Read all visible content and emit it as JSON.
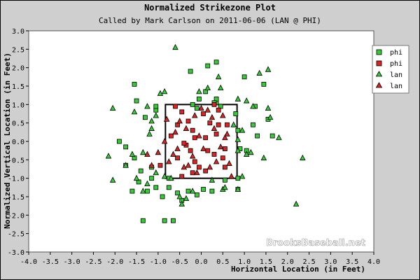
{
  "chart_data": {
    "type": "scatter",
    "title": "Normalized Strikezone Plot",
    "subtitle": "Called by Mark Carlson on 2011-06-06 (LAN @ PHI)",
    "xlabel": "Horizontal Location (in Feet)",
    "ylabel": "Normalized Vertical Location (in Feet)",
    "xlim": [
      -4.0,
      4.0
    ],
    "ylim": [
      -3.0,
      3.0
    ],
    "xticks": [
      "-4.0",
      "-3.5",
      "-3.0",
      "-2.5",
      "-2.0",
      "-1.5",
      "-1.0",
      "-0.5",
      "0.0",
      "0.5",
      "1.0",
      "1.5",
      "2.0",
      "2.5",
      "3.0",
      "3.5",
      "4.0"
    ],
    "yticks": [
      "3.0",
      "2.5",
      "2.0",
      "1.5",
      "1.0",
      "0.5",
      "0.0",
      "-0.5",
      "-1.0",
      "-1.5",
      "-2.0",
      "-2.5",
      "-3.0"
    ],
    "grid": false,
    "legend_position": "top-right",
    "strike_zone": {
      "x": [
        -0.83,
        0.83
      ],
      "y": [
        -1.0,
        1.0
      ]
    },
    "watermark": "BrooksBaseball.net",
    "series": [
      {
        "name": "phi",
        "marker": "square",
        "color": "#33cc33",
        "points": [
          [
            -1.55,
            1.55
          ],
          [
            -1.5,
            1.1
          ],
          [
            -1.05,
            0.85
          ],
          [
            -1.9,
            0.0
          ],
          [
            -1.75,
            -0.15
          ],
          [
            -1.55,
            -0.45
          ],
          [
            -1.75,
            -0.65
          ],
          [
            -1.4,
            -0.8
          ],
          [
            -1.15,
            -0.7
          ],
          [
            -1.15,
            -1.0
          ],
          [
            -1.05,
            -1.25
          ],
          [
            -1.25,
            -1.35
          ],
          [
            -1.45,
            -1.1
          ],
          [
            -1.6,
            -1.35
          ],
          [
            -1.35,
            -2.15
          ],
          [
            -0.9,
            -1.5
          ],
          [
            -0.85,
            -2.15
          ],
          [
            -0.65,
            -2.15
          ],
          [
            -0.75,
            -1.0
          ],
          [
            -0.75,
            -1.25
          ],
          [
            -0.55,
            -1.4
          ],
          [
            -0.45,
            -1.6
          ],
          [
            -0.3,
            -1.35
          ],
          [
            -0.1,
            -1.45
          ],
          [
            0.05,
            -1.3
          ],
          [
            0.25,
            -1.35
          ],
          [
            0.55,
            -1.05
          ],
          [
            0.85,
            -1.3
          ],
          [
            0.85,
            -1.0
          ],
          [
            0.35,
            1.05
          ],
          [
            0.1,
            1.35
          ],
          [
            -0.1,
            0.9
          ],
          [
            -0.2,
            1.0
          ],
          [
            0.35,
            1.15
          ],
          [
            0.45,
            0.95
          ],
          [
            0.3,
            1.05
          ],
          [
            0.35,
            2.15
          ],
          [
            0.15,
            2.05
          ],
          [
            -0.25,
            1.9
          ],
          [
            -0.05,
            1.15
          ],
          [
            0.8,
            0.75
          ],
          [
            0.85,
            0.3
          ],
          [
            0.9,
            -0.2
          ],
          [
            1.05,
            -0.25
          ],
          [
            1.2,
            0.45
          ],
          [
            1.3,
            0.15
          ],
          [
            1.55,
            0.6
          ],
          [
            1.65,
            0.15
          ],
          [
            1.25,
            0.95
          ],
          [
            1.45,
            1.55
          ],
          [
            1.0,
            1.75
          ],
          [
            -1.05,
            0.95
          ],
          [
            -1.3,
            0.65
          ]
        ]
      },
      {
        "name": "phi",
        "marker": "square",
        "color": "#dd2222",
        "points": [
          [
            -0.95,
            -0.65
          ],
          [
            -0.7,
            0.15
          ],
          [
            -0.55,
            0.45
          ],
          [
            -0.55,
            -0.45
          ],
          [
            -0.45,
            0.8
          ],
          [
            -0.35,
            -0.1
          ],
          [
            -0.2,
            0.3
          ],
          [
            -0.15,
            -0.55
          ],
          [
            -0.05,
            -0.7
          ],
          [
            0.1,
            0.1
          ],
          [
            0.2,
            0.5
          ],
          [
            0.3,
            -0.35
          ],
          [
            0.4,
            0.85
          ],
          [
            0.4,
            0.45
          ],
          [
            0.5,
            -0.45
          ],
          [
            0.55,
            -0.7
          ],
          [
            0.6,
            0.45
          ],
          [
            0.3,
            1.0
          ],
          [
            0.1,
            -0.8
          ],
          [
            -0.45,
            -0.95
          ],
          [
            -0.2,
            -0.85
          ],
          [
            0.05,
            0.75
          ],
          [
            0.55,
            -0.2
          ],
          [
            -0.3,
            0.55
          ],
          [
            -0.4,
            -0.05
          ],
          [
            -0.6,
            0.95
          ],
          [
            -0.15,
            0.1
          ],
          [
            0.35,
            0.2
          ],
          [
            -0.25,
            -0.25
          ],
          [
            0.15,
            -0.25
          ]
        ]
      },
      {
        "name": "lan",
        "marker": "triangle",
        "color": "#33cc33",
        "points": [
          [
            -0.6,
            2.55
          ],
          [
            0.4,
            1.75
          ],
          [
            1.35,
            1.85
          ],
          [
            1.55,
            1.95
          ],
          [
            -0.05,
            1.35
          ],
          [
            0.15,
            1.45
          ],
          [
            0.45,
            1.45
          ],
          [
            -0.85,
            1.35
          ],
          [
            -0.95,
            1.3
          ],
          [
            -1.25,
            0.95
          ],
          [
            -1.55,
            0.8
          ],
          [
            -2.05,
            0.9
          ],
          [
            -1.15,
            0.55
          ],
          [
            -1.2,
            0.2
          ],
          [
            -1.35,
            -0.3
          ],
          [
            -1.6,
            -0.35
          ],
          [
            -2.15,
            -0.4
          ],
          [
            -1.75,
            -0.65
          ],
          [
            -2.05,
            -1.05
          ],
          [
            -1.5,
            -1.0
          ],
          [
            -1.25,
            -1.15
          ],
          [
            -1.35,
            -1.35
          ],
          [
            -1.05,
            -0.85
          ],
          [
            -0.85,
            -0.95
          ],
          [
            -0.7,
            -1.0
          ],
          [
            -0.5,
            -1.5
          ],
          [
            -0.45,
            -1.7
          ],
          [
            -0.35,
            -1.55
          ],
          [
            -0.2,
            -1.35
          ],
          [
            0.25,
            -1.05
          ],
          [
            0.5,
            -1.3
          ],
          [
            0.55,
            -1.25
          ],
          [
            0.85,
            -1.3
          ],
          [
            0.95,
            -0.95
          ],
          [
            0.85,
            -0.25
          ],
          [
            0.85,
            0.05
          ],
          [
            1.05,
            -0.35
          ],
          [
            1.15,
            -0.3
          ],
          [
            1.45,
            -0.45
          ],
          [
            1.8,
            0.1
          ],
          [
            2.35,
            -0.45
          ],
          [
            2.2,
            -1.7
          ],
          [
            0.85,
            1.15
          ],
          [
            1.05,
            1.1
          ],
          [
            1.2,
            0.95
          ],
          [
            1.55,
            0.9
          ],
          [
            1.6,
            0.65
          ],
          [
            0.95,
            0.3
          ],
          [
            0.75,
            0.45
          ],
          [
            -1.05,
            0.7
          ],
          [
            -1.15,
            0.35
          ]
        ]
      },
      {
        "name": "lan",
        "marker": "triangle",
        "color": "#dd2222",
        "points": [
          [
            -1.25,
            -0.35
          ],
          [
            -1.15,
            -0.65
          ],
          [
            -1.0,
            -0.3
          ],
          [
            -0.85,
            0.0
          ],
          [
            -0.75,
            -0.55
          ],
          [
            -0.6,
            0.25
          ],
          [
            -0.55,
            -0.2
          ],
          [
            -0.5,
            0.55
          ],
          [
            -0.35,
            0.35
          ],
          [
            -0.3,
            -0.65
          ],
          [
            -0.15,
            0.7
          ],
          [
            -0.05,
            0.15
          ],
          [
            0.05,
            -0.2
          ],
          [
            0.15,
            0.85
          ],
          [
            0.25,
            0.65
          ],
          [
            0.35,
            -0.55
          ],
          [
            0.45,
            -0.15
          ],
          [
            0.5,
            0.7
          ],
          [
            0.6,
            0.2
          ],
          [
            0.65,
            -0.6
          ],
          [
            0.7,
            -0.95
          ],
          [
            -0.2,
            -0.4
          ],
          [
            -0.4,
            -0.7
          ],
          [
            0.0,
            0.9
          ],
          [
            -0.8,
            0.6
          ],
          [
            -0.65,
            -0.35
          ],
          [
            0.2,
            -0.7
          ],
          [
            0.55,
            0.1
          ],
          [
            -0.1,
            -0.85
          ],
          [
            0.3,
            0.35
          ]
        ]
      }
    ]
  }
}
